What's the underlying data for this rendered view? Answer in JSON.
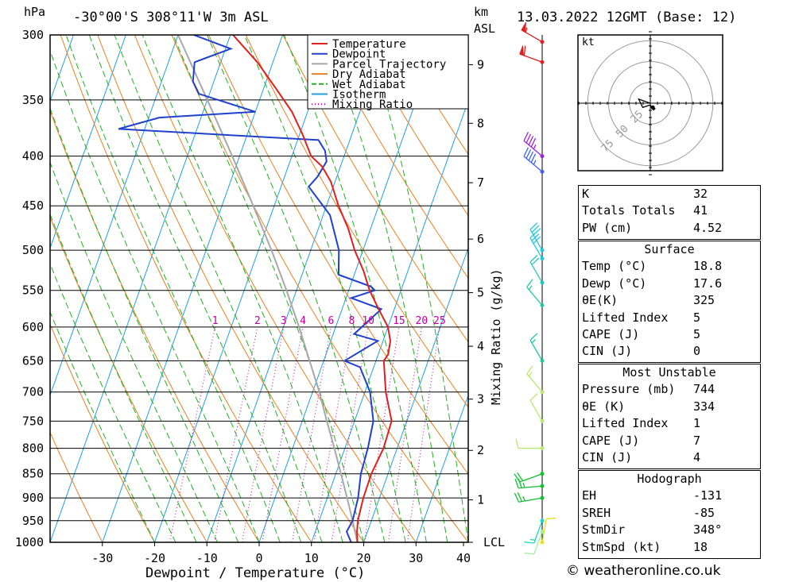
{
  "chart_data": {
    "type": "line",
    "title": "-30°00'S 308°11'W 3m ASL",
    "datetime": "13.03.2022 12GMT (Base: 12)",
    "xlabel": "Dewpoint / Temperature (°C)",
    "ylabel": "hPa",
    "right_axis_label": "Mixing Ratio (g/kg)",
    "km_label": [
      "km",
      "ASL"
    ],
    "pressure_ticks": [
      300,
      350,
      400,
      450,
      500,
      550,
      600,
      650,
      700,
      750,
      800,
      850,
      900,
      950,
      1000
    ],
    "temperature_ticks": [
      -30,
      -20,
      -10,
      0,
      10,
      20,
      30,
      40
    ],
    "xlim": [
      -40,
      40
    ],
    "km_ticks": [
      {
        "label": "9",
        "p": 322
      },
      {
        "label": "8",
        "p": 370
      },
      {
        "label": "7",
        "p": 426
      },
      {
        "label": "6",
        "p": 487
      },
      {
        "label": "5",
        "p": 553
      },
      {
        "label": "4",
        "p": 628
      },
      {
        "label": "3",
        "p": 712
      },
      {
        "label": "2",
        "p": 804
      },
      {
        "label": "1",
        "p": 904
      },
      {
        "label": "LCL",
        "p": 1000
      }
    ],
    "mixing_ratio_labels": [
      "1",
      "2",
      "3",
      "4",
      "6",
      "8",
      "10",
      "15",
      "20",
      "25"
    ],
    "legend": [
      "Temperature",
      "Dewpoint",
      "Parcel Trajectory",
      "Dry Adiabat",
      "Wet Adiabat",
      "Isotherm",
      "Mixing Ratio"
    ],
    "series": [
      {
        "name": "Temperature",
        "color": "#e02020",
        "points": [
          [
            1000,
            18.8
          ],
          [
            975,
            18.0
          ],
          [
            950,
            17.4
          ],
          [
            900,
            16.9
          ],
          [
            850,
            16.8
          ],
          [
            800,
            17.4
          ],
          [
            750,
            17.1
          ],
          [
            700,
            14.0
          ],
          [
            650,
            11.5
          ],
          [
            640,
            11.9
          ],
          [
            620,
            11.4
          ],
          [
            600,
            10.0
          ],
          [
            575,
            7.0
          ],
          [
            550,
            4.0
          ],
          [
            525,
            1.5
          ],
          [
            500,
            -1.6
          ],
          [
            475,
            -4.3
          ],
          [
            450,
            -7.7
          ],
          [
            425,
            -10.8
          ],
          [
            410,
            -13.5
          ],
          [
            400,
            -16.3
          ],
          [
            380,
            -19.4
          ],
          [
            360,
            -23.0
          ],
          [
            340,
            -27.8
          ],
          [
            320,
            -33.0
          ],
          [
            300,
            -39.5
          ]
        ]
      },
      {
        "name": "Dewpoint",
        "color": "#2040d0",
        "points": [
          [
            1000,
            17.6
          ],
          [
            975,
            16.0
          ],
          [
            950,
            16.4
          ],
          [
            900,
            15.9
          ],
          [
            850,
            14.8
          ],
          [
            800,
            14.4
          ],
          [
            750,
            13.6
          ],
          [
            700,
            11.0
          ],
          [
            660,
            7.4
          ],
          [
            650,
            4.0
          ],
          [
            620,
            9.0
          ],
          [
            610,
            4.0
          ],
          [
            590,
            6.0
          ],
          [
            575,
            7.5
          ],
          [
            560,
            1.0
          ],
          [
            550,
            5.0
          ],
          [
            545,
            4.0
          ],
          [
            530,
            -3.0
          ],
          [
            500,
            -4.6
          ],
          [
            460,
            -8.7
          ],
          [
            430,
            -14.7
          ],
          [
            420,
            -13.7
          ],
          [
            405,
            -13.0
          ],
          [
            395,
            -14.0
          ],
          [
            385,
            -16.0
          ],
          [
            375,
            -55.0
          ],
          [
            365,
            -48.0
          ],
          [
            360,
            -30.0
          ],
          [
            345,
            -42.0
          ],
          [
            335,
            -44.0
          ],
          [
            320,
            -45.0
          ],
          [
            310,
            -39.0
          ],
          [
            300,
            -47.0
          ]
        ]
      },
      {
        "name": "Parcel Trajectory",
        "color": "#a8a8a8",
        "points": [
          [
            1000,
            18.8
          ],
          [
            950,
            16.4
          ],
          [
            900,
            13.8
          ],
          [
            850,
            11.0
          ],
          [
            800,
            8.0
          ],
          [
            750,
            4.7
          ],
          [
            700,
            1.3
          ],
          [
            650,
            -2.7
          ],
          [
            600,
            -7.0
          ],
          [
            550,
            -11.9
          ],
          [
            500,
            -17.5
          ],
          [
            450,
            -24.0
          ],
          [
            400,
            -31.4
          ],
          [
            350,
            -40.0
          ],
          [
            300,
            -50.0
          ]
        ]
      }
    ],
    "winds": [
      {
        "p": 1000,
        "dir": 10,
        "spd": 10,
        "color": "#e8e020"
      },
      {
        "p": 975,
        "dir": 200,
        "spd": 10,
        "color": "#a0f0a0"
      },
      {
        "p": 950,
        "dir": 200,
        "spd": 15,
        "color": "#20d8c0"
      },
      {
        "p": 900,
        "dir": 260,
        "spd": 25,
        "color": "#10c030"
      },
      {
        "p": 875,
        "dir": 265,
        "spd": 25,
        "color": "#10c030"
      },
      {
        "p": 850,
        "dir": 250,
        "spd": 20,
        "color": "#10c030"
      },
      {
        "p": 800,
        "dir": 270,
        "spd": 10,
        "color": "#b8e870"
      },
      {
        "p": 750,
        "dir": 330,
        "spd": 10,
        "color": "#b8e870"
      },
      {
        "p": 700,
        "dir": 320,
        "spd": 15,
        "color": "#b8e870"
      },
      {
        "p": 650,
        "dir": 330,
        "spd": 15,
        "color": "#20c8a0"
      },
      {
        "p": 570,
        "dir": 320,
        "spd": 15,
        "color": "#20c8a0"
      },
      {
        "p": 540,
        "dir": 330,
        "spd": 20,
        "color": "#20c8c0"
      },
      {
        "p": 510,
        "dir": 330,
        "spd": 30,
        "color": "#20c8e0"
      },
      {
        "p": 500,
        "dir": 330,
        "spd": 30,
        "color": "#20c8e0"
      },
      {
        "p": 415,
        "dir": 310,
        "spd": 45,
        "color": "#4060f0"
      },
      {
        "p": 400,
        "dir": 310,
        "spd": 45,
        "color": "#a020e0"
      },
      {
        "p": 320,
        "dir": 290,
        "spd": 60,
        "color": "#e02020"
      },
      {
        "p": 305,
        "dir": 300,
        "spd": 55,
        "color": "#e02020"
      }
    ],
    "hodograph": {
      "unit_label": "kt",
      "rings": [
        25,
        50,
        75
      ],
      "path": [
        [
          0,
          0
        ],
        [
          -14,
          5
        ],
        [
          -9,
          -5
        ],
        [
          0,
          -2
        ],
        [
          3,
          -7
        ],
        [
          4,
          -8
        ],
        [
          6,
          -6
        ]
      ],
      "storm_motion": [
        3,
        -5
      ]
    }
  },
  "indices": {
    "K": "32",
    "Totals Totals": "41",
    "PW (cm)": "4.52"
  },
  "surface": {
    "title": "Surface",
    "rows": [
      {
        "label": "Temp (°C)",
        "value": "18.8"
      },
      {
        "label": "Dewp (°C)",
        "value": "17.6"
      },
      {
        "label": "θE(K)",
        "value": "325"
      },
      {
        "label": "Lifted Index",
        "value": "5"
      },
      {
        "label": "CAPE (J)",
        "value": "5"
      },
      {
        "label": "CIN (J)",
        "value": "0"
      }
    ]
  },
  "most_unstable": {
    "title": "Most Unstable",
    "rows": [
      {
        "label": "Pressure (mb)",
        "value": "744"
      },
      {
        "label": "θE (K)",
        "value": "334"
      },
      {
        "label": "Lifted Index",
        "value": "1"
      },
      {
        "label": "CAPE (J)",
        "value": "7"
      },
      {
        "label": "CIN (J)",
        "value": "4"
      }
    ]
  },
  "hodograph_indices": {
    "title": "Hodograph",
    "rows": [
      {
        "label": "EH",
        "value": "-131"
      },
      {
        "label": "SREH",
        "value": "-85"
      },
      {
        "label": "StmDir",
        "value": "348°"
      },
      {
        "label": "StmSpd (kt)",
        "value": "18"
      }
    ]
  },
  "copyright": "© weatheronline.co.uk",
  "colors": {
    "temperature": "#e02020",
    "dewpoint": "#2040d0",
    "parcel": "#a8a8a8",
    "dry_adiabat": "#e88020",
    "wet_adiabat": "#20b020",
    "isotherm": "#20a0e0",
    "mixing_ratio": "#c000a0"
  }
}
